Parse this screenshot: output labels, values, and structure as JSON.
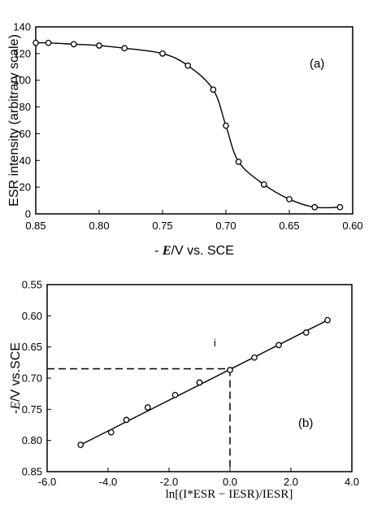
{
  "chart_data": [
    {
      "type": "scatter",
      "panel_label": "(a)",
      "xlabel_italic": "E",
      "xlabel_prefix": "- ",
      "xlabel_suffix": "/V vs. SCE",
      "ylabel": "ESR intensity (arbitrary scale)",
      "xlim": [
        0.85,
        0.6
      ],
      "ylim": [
        0,
        140
      ],
      "x_ticks": [
        "0.85",
        "0.80",
        "0.75",
        "0.70",
        "0.65",
        "0.60"
      ],
      "y_ticks": [
        "0",
        "20",
        "40",
        "60",
        "80",
        "100",
        "120",
        "140"
      ],
      "grid": false,
      "fit_line": "sigmoid",
      "x": [
        0.85,
        0.84,
        0.82,
        0.8,
        0.78,
        0.75,
        0.73,
        0.71,
        0.7,
        0.69,
        0.67,
        0.65,
        0.63,
        0.61
      ],
      "y": [
        128,
        128,
        127,
        126,
        124,
        120,
        111,
        93,
        66,
        39,
        22,
        11,
        5,
        5
      ]
    },
    {
      "type": "scatter",
      "panel_label": "(b)",
      "ylabel_italic": "E",
      "ylabel_prefix": "-",
      "ylabel_suffix": "/V vs.SCE",
      "xlabel": "ln[(I*ESR − IESR)/IESR]",
      "xlim": [
        -6.0,
        4.0
      ],
      "ylim": [
        0.85,
        0.55
      ],
      "x_ticks": [
        "-6.0",
        "-4.0",
        "-2.0",
        "0.0",
        "2.0",
        "4.0"
      ],
      "y_ticks": [
        "0.55",
        "0.60",
        "0.65",
        "0.70",
        "0.75",
        "0.80",
        "0.85"
      ],
      "grid": false,
      "fit_line": "linear",
      "x": [
        -4.9,
        -3.9,
        -3.4,
        -2.7,
        -1.8,
        -1.0,
        0.0,
        0.8,
        1.6,
        2.5,
        3.2
      ],
      "y": [
        0.807,
        0.787,
        0.767,
        0.747,
        0.727,
        0.707,
        0.687,
        0.667,
        0.647,
        0.627,
        0.607
      ],
      "reference_point": {
        "x": 0.0,
        "y": 0.685
      },
      "annotation": "i"
    }
  ]
}
